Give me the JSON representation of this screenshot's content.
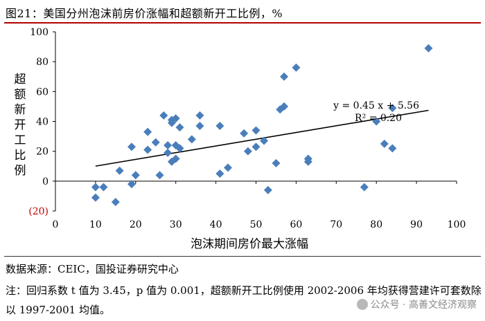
{
  "title": "图21：美国分州泡沫前房价涨幅和超额新开工比例，%",
  "source": "数据来源：CEIC，国投证券研究中心",
  "note": "注：回归系数 t 值为 3.45，p 值为 0.001，超额新开工比例使用 2002-2006 年均获得营建许可套数除以 1997-2001 均值。",
  "watermark": "公众号 · 高善文经济观察",
  "colors": {
    "marker": "#4a7ebb",
    "negative_tick": "#c00000",
    "line": "#000000"
  },
  "chart_data": {
    "type": "scatter",
    "xlabel": "泡沫期间房价最大涨幅",
    "ylabel": "超额新开工比例",
    "xlim": [
      0,
      100
    ],
    "ylim": [
      -20,
      100
    ],
    "xticks": [
      0,
      10,
      20,
      30,
      40,
      50,
      60,
      70,
      80,
      90,
      100
    ],
    "yticks": [
      -20,
      0,
      20,
      40,
      60,
      80,
      100
    ],
    "ytick_labels": [
      "(20)",
      "0",
      "20",
      "40",
      "60",
      "80",
      "100"
    ],
    "grid": false,
    "trendline": {
      "slope": 0.45,
      "intercept": 5.56,
      "x_range": [
        10,
        93
      ]
    },
    "annotation": [
      "y = 0.45 x + 5.56",
      "R² = 0.20"
    ],
    "points": [
      [
        10,
        -4
      ],
      [
        10,
        -11
      ],
      [
        12,
        -4
      ],
      [
        15,
        -14
      ],
      [
        16,
        7
      ],
      [
        19,
        23
      ],
      [
        19,
        -2
      ],
      [
        20,
        4
      ],
      [
        23,
        33
      ],
      [
        23,
        21
      ],
      [
        25,
        26
      ],
      [
        26,
        4
      ],
      [
        27,
        44
      ],
      [
        28,
        24
      ],
      [
        28,
        19
      ],
      [
        29,
        41
      ],
      [
        29,
        39
      ],
      [
        29,
        13
      ],
      [
        30,
        42
      ],
      [
        30,
        15
      ],
      [
        30,
        24
      ],
      [
        31,
        36
      ],
      [
        31,
        22
      ],
      [
        34,
        28
      ],
      [
        36,
        44
      ],
      [
        36,
        37
      ],
      [
        41,
        37
      ],
      [
        41,
        5
      ],
      [
        43,
        9
      ],
      [
        47,
        32
      ],
      [
        48,
        20
      ],
      [
        50,
        34
      ],
      [
        50,
        23
      ],
      [
        52,
        27
      ],
      [
        53,
        -6
      ],
      [
        55,
        12
      ],
      [
        56,
        48
      ],
      [
        57,
        50
      ],
      [
        57,
        70
      ],
      [
        60,
        76
      ],
      [
        63,
        13
      ],
      [
        63,
        15
      ],
      [
        77,
        -4
      ],
      [
        80,
        40
      ],
      [
        82,
        25
      ],
      [
        84,
        22
      ],
      [
        84,
        49
      ],
      [
        93,
        89
      ]
    ]
  }
}
